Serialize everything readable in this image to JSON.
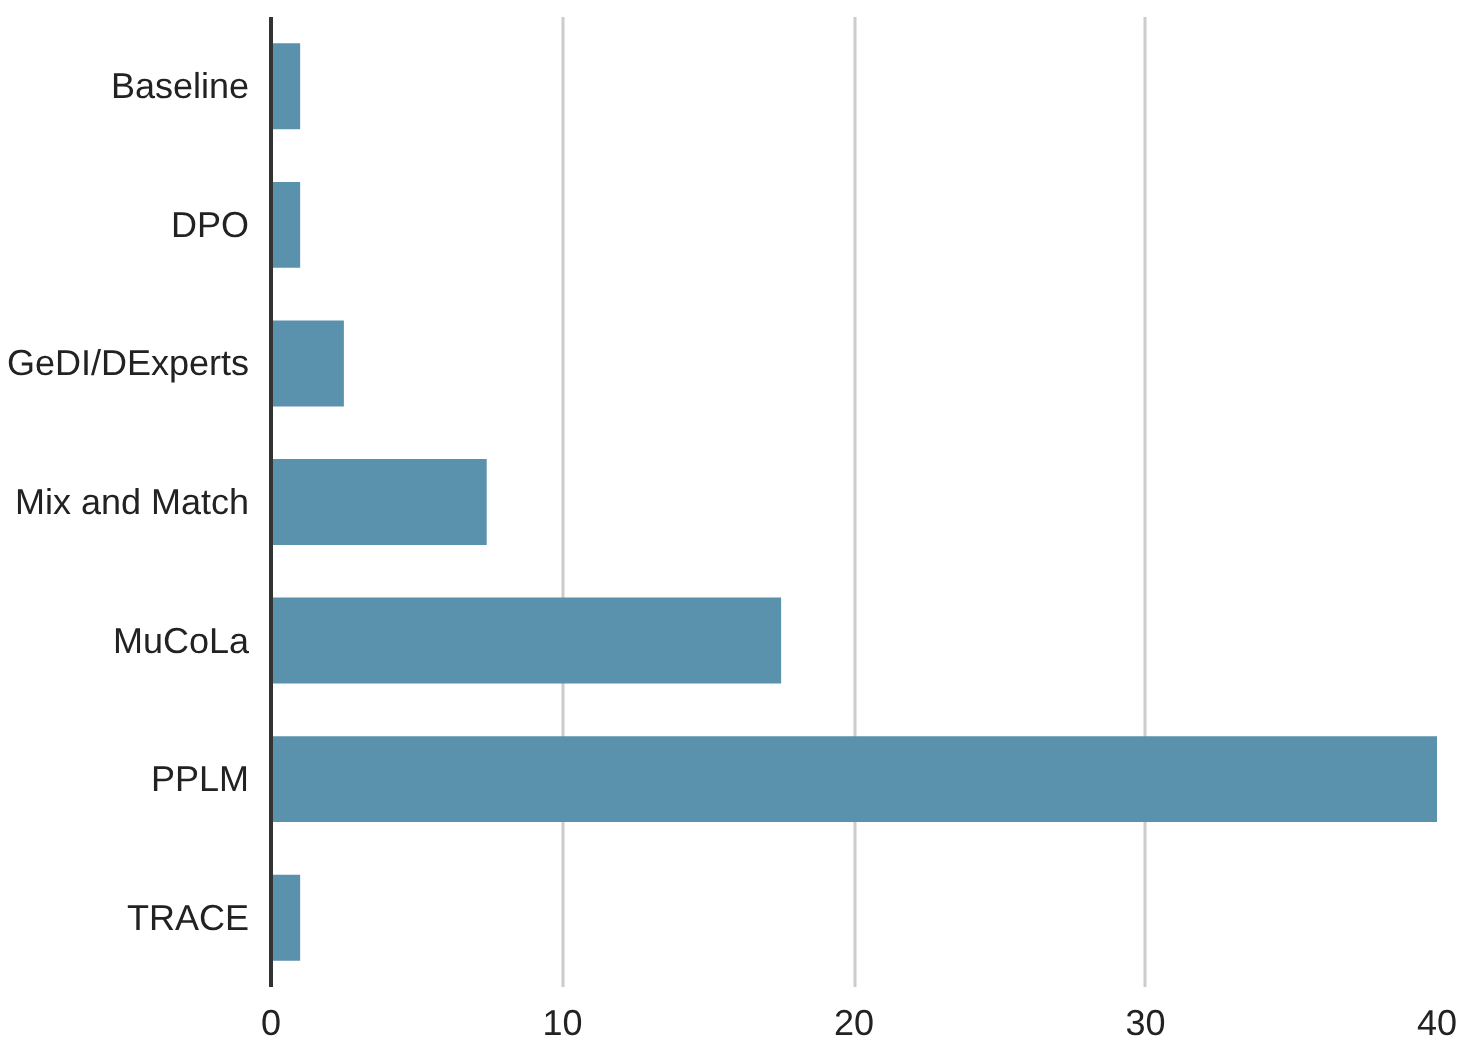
{
  "chart_data": {
    "type": "bar",
    "orientation": "horizontal",
    "categories": [
      "Baseline",
      "DPO",
      "GeDI/DExperts",
      "Mix and Match",
      "MuCoLa",
      "PPLM",
      "TRACE"
    ],
    "values": [
      1,
      1,
      2.5,
      7.4,
      17.5,
      40,
      1
    ],
    "color": "#5a91ad",
    "xlim": [
      0,
      40
    ],
    "xticks": [
      0,
      10,
      20,
      30,
      40
    ],
    "grid": "x"
  }
}
